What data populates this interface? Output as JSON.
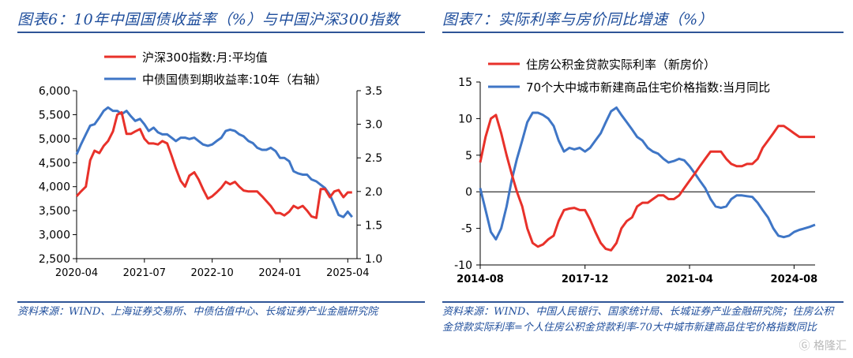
{
  "colors": {
    "title": "#1f4e9c",
    "red": "#e8312a",
    "blue": "#3f76c6",
    "rule": "#2f5597"
  },
  "left": {
    "title": "图表6：10年中国国债收益率（%）与中国沪深300指数",
    "source": "资料来源：WIND、上海证券交易所、中债估值中心、长城证券产业金融研究院",
    "chart_data": {
      "type": "line",
      "legend_position": "top-left",
      "series": [
        {
          "name": "沪深300指数:月:平均值",
          "axis": "left",
          "color": "#e8312a",
          "x": [
            2020.25,
            2020.33,
            2020.42,
            2020.5,
            2020.58,
            2020.67,
            2020.75,
            2020.83,
            2020.92,
            2021.0,
            2021.08,
            2021.17,
            2021.25,
            2021.33,
            2021.42,
            2021.5,
            2021.58,
            2021.67,
            2021.75,
            2021.83,
            2021.92,
            2022.0,
            2022.08,
            2022.17,
            2022.25,
            2022.33,
            2022.42,
            2022.5,
            2022.58,
            2022.67,
            2022.75,
            2022.83,
            2022.92,
            2023.0,
            2023.08,
            2023.17,
            2023.25,
            2023.33,
            2023.42,
            2023.5,
            2023.58,
            2023.67,
            2023.75,
            2023.83,
            2023.92,
            2024.0,
            2024.08,
            2024.17,
            2024.25,
            2024.33,
            2024.42,
            2024.5,
            2024.58,
            2024.67,
            2024.75,
            2024.83,
            2024.92,
            2025.0,
            2025.08,
            2025.17,
            2025.25,
            2025.33
          ],
          "values": [
            3800,
            3900,
            4000,
            4550,
            4750,
            4700,
            4850,
            4950,
            5150,
            5500,
            5550,
            5100,
            5100,
            5150,
            5200,
            5000,
            4900,
            4900,
            4880,
            4950,
            4900,
            4650,
            4380,
            4120,
            4000,
            4230,
            4300,
            4150,
            3950,
            3750,
            3800,
            3880,
            3980,
            4100,
            4050,
            4100,
            4000,
            3920,
            3900,
            3900,
            3900,
            3800,
            3700,
            3600,
            3450,
            3450,
            3400,
            3480,
            3600,
            3550,
            3600,
            3500,
            3380,
            3350,
            3950,
            3950,
            3780,
            3900,
            3930,
            3780,
            3880,
            3880
          ]
        },
        {
          "name": "中债国债到期收益率:10年（右轴）",
          "axis": "right",
          "color": "#3f76c6",
          "x": [
            2020.25,
            2020.33,
            2020.42,
            2020.5,
            2020.58,
            2020.67,
            2020.75,
            2020.83,
            2020.92,
            2021.0,
            2021.08,
            2021.17,
            2021.25,
            2021.33,
            2021.42,
            2021.5,
            2021.58,
            2021.67,
            2021.75,
            2021.83,
            2021.92,
            2022.0,
            2022.08,
            2022.17,
            2022.25,
            2022.33,
            2022.42,
            2022.5,
            2022.58,
            2022.67,
            2022.75,
            2022.83,
            2022.92,
            2023.0,
            2023.08,
            2023.17,
            2023.25,
            2023.33,
            2023.42,
            2023.5,
            2023.58,
            2023.67,
            2023.75,
            2023.83,
            2023.92,
            2024.0,
            2024.08,
            2024.17,
            2024.25,
            2024.33,
            2024.42,
            2024.5,
            2024.58,
            2024.67,
            2024.75,
            2024.83,
            2024.92,
            2025.0,
            2025.08,
            2025.17,
            2025.25,
            2025.33
          ],
          "values": [
            2.55,
            2.7,
            2.85,
            2.98,
            3.0,
            3.1,
            3.2,
            3.25,
            3.2,
            3.2,
            3.15,
            3.2,
            3.12,
            3.05,
            3.08,
            3.0,
            2.9,
            2.95,
            2.88,
            2.85,
            2.85,
            2.8,
            2.75,
            2.8,
            2.8,
            2.78,
            2.8,
            2.75,
            2.7,
            2.68,
            2.7,
            2.75,
            2.8,
            2.9,
            2.92,
            2.9,
            2.85,
            2.82,
            2.75,
            2.72,
            2.65,
            2.62,
            2.62,
            2.65,
            2.6,
            2.5,
            2.5,
            2.45,
            2.3,
            2.27,
            2.25,
            2.25,
            2.18,
            2.15,
            2.1,
            2.05,
            1.95,
            1.8,
            1.65,
            1.62,
            1.7,
            1.62
          ]
        }
      ],
      "x_ticks": [
        "2020-04",
        "2021-07",
        "2022-10",
        "2024-01",
        "2025-04"
      ],
      "y_left": {
        "min": 2500,
        "max": 6000,
        "ticks": [
          "2,500",
          "3,000",
          "3,500",
          "4,000",
          "4,500",
          "5,000",
          "5,500",
          "6,000"
        ]
      },
      "y_right": {
        "min": 1.0,
        "max": 3.5,
        "ticks": [
          "1.0",
          "1.5",
          "2.0",
          "2.5",
          "3.0",
          "3.5"
        ]
      }
    }
  },
  "right": {
    "title": "图表7：实际利率与房价同比增速（%）",
    "source": "资料来源：WIND、中国人民银行、国家统计局、长城证券产业金融研究院；住房公积金贷款实际利率=个人住房公积金贷款利率-70大中城市新建商品住宅价格指数同比",
    "chart_data": {
      "type": "line",
      "legend_position": "top-left",
      "series": [
        {
          "name": "住房公积金贷款实际利率（新房价）",
          "color": "#e8312a",
          "x": [
            2014.58,
            2014.75,
            2014.92,
            2015.08,
            2015.25,
            2015.42,
            2015.58,
            2015.75,
            2015.92,
            2016.08,
            2016.25,
            2016.42,
            2016.58,
            2016.75,
            2016.92,
            2017.08,
            2017.25,
            2017.42,
            2017.58,
            2017.75,
            2017.92,
            2018.08,
            2018.25,
            2018.42,
            2018.58,
            2018.75,
            2018.92,
            2019.08,
            2019.25,
            2019.42,
            2019.58,
            2019.75,
            2019.92,
            2020.08,
            2020.25,
            2020.42,
            2020.58,
            2020.75,
            2020.92,
            2021.08,
            2021.25,
            2021.42,
            2021.58,
            2021.75,
            2021.92,
            2022.08,
            2022.25,
            2022.42,
            2022.58,
            2022.75,
            2022.92,
            2023.08,
            2023.25,
            2023.42,
            2023.58,
            2023.75,
            2023.92,
            2024.08,
            2024.25,
            2024.42,
            2024.58,
            2024.75,
            2024.92,
            2025.08,
            2025.25
          ],
          "values": [
            4,
            7.5,
            10,
            10.5,
            8,
            5,
            2.5,
            0,
            -2,
            -5,
            -7,
            -7.5,
            -7.2,
            -6.5,
            -6,
            -4,
            -2.5,
            -2.3,
            -2.2,
            -2.5,
            -2.5,
            -3.8,
            -5.5,
            -7,
            -7.8,
            -8,
            -7,
            -5,
            -4,
            -3.5,
            -2,
            -1.5,
            -1.5,
            -1,
            -0.5,
            -0.5,
            -1,
            -1,
            -0.5,
            0.5,
            1.5,
            2.5,
            3.5,
            4.5,
            5.5,
            5.5,
            5.5,
            4.5,
            3.8,
            3.5,
            3.5,
            3.8,
            3.8,
            4.5,
            6,
            7,
            8,
            9,
            9,
            8.5,
            8,
            7.5,
            7.5,
            7.5,
            7.5
          ]
        },
        {
          "name": "70个大中城市新建商品住宅价格指数:当月同比",
          "color": "#3f76c6",
          "x": [
            2014.58,
            2014.75,
            2014.92,
            2015.08,
            2015.25,
            2015.42,
            2015.58,
            2015.75,
            2015.92,
            2016.08,
            2016.25,
            2016.42,
            2016.58,
            2016.75,
            2016.92,
            2017.08,
            2017.25,
            2017.42,
            2017.58,
            2017.75,
            2017.92,
            2018.08,
            2018.25,
            2018.42,
            2018.58,
            2018.75,
            2018.92,
            2019.08,
            2019.25,
            2019.42,
            2019.58,
            2019.75,
            2019.92,
            2020.08,
            2020.25,
            2020.42,
            2020.58,
            2020.75,
            2020.92,
            2021.08,
            2021.25,
            2021.42,
            2021.58,
            2021.75,
            2021.92,
            2022.08,
            2022.25,
            2022.42,
            2022.58,
            2022.75,
            2022.92,
            2023.08,
            2023.25,
            2023.42,
            2023.58,
            2023.75,
            2023.92,
            2024.08,
            2024.25,
            2024.42,
            2024.58,
            2024.75,
            2024.92,
            2025.08,
            2025.25
          ],
          "values": [
            0.5,
            -2.5,
            -5.5,
            -6.5,
            -5,
            -2,
            1.5,
            4.5,
            7,
            9.5,
            10.8,
            10.8,
            10.5,
            10,
            9,
            7,
            5.5,
            6,
            5.8,
            6,
            5.5,
            6,
            7,
            8,
            9.5,
            11,
            11.5,
            10.5,
            9.5,
            8.5,
            7.5,
            7,
            6,
            5.5,
            5.2,
            4.5,
            4,
            4.2,
            4.5,
            4.3,
            3.5,
            2.5,
            1.5,
            0.5,
            -1,
            -2,
            -2.2,
            -2,
            -1,
            -0.5,
            -0.5,
            -0.6,
            -0.7,
            -1.5,
            -2.5,
            -3.5,
            -5,
            -6,
            -6.2,
            -6,
            -5.5,
            -5.2,
            -5,
            -4.8,
            -4.5
          ]
        }
      ],
      "x_ticks": [
        "2014-08",
        "2017-12",
        "2021-04",
        "2024-08"
      ],
      "y": {
        "min": -10,
        "max": 15,
        "ticks": [
          "-10",
          "-5",
          "0",
          "5",
          "10",
          "15"
        ]
      }
    }
  },
  "watermark": "格隆汇"
}
